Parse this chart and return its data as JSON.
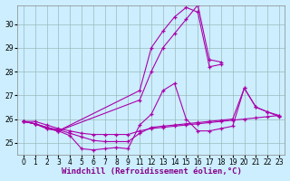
{
  "title": "",
  "xlabel": "Windchill (Refroidissement éolien,°C)",
  "bg_color": "#cceeff",
  "line_color": "#aa00aa",
  "grid_color": "#99bbbb",
  "series": [
    [
      25.9,
      25.9,
      25.75,
      25.6,
      25.5,
      25.4,
      25.35,
      25.35,
      25.35,
      25.35,
      25.5,
      25.6,
      25.65,
      25.7,
      25.75,
      25.8,
      25.85,
      25.9,
      25.95,
      26.0,
      26.05,
      26.1,
      26.15
    ],
    [
      25.9,
      25.8,
      25.65,
      25.55,
      25.4,
      25.25,
      25.1,
      25.05,
      25.05,
      25.05,
      25.4,
      25.65,
      25.7,
      25.75,
      25.8,
      25.85,
      25.9,
      25.95,
      26.0,
      27.3,
      26.5,
      26.3,
      26.1
    ],
    [
      25.9,
      25.8,
      25.65,
      25.5,
      25.3,
      24.75,
      24.7,
      24.75,
      24.8,
      24.75,
      25.75,
      26.2,
      27.2,
      27.5,
      26.0,
      25.5,
      25.5,
      25.6,
      25.7,
      27.3,
      26.5,
      26.3,
      26.15
    ],
    [
      25.9,
      25.8,
      25.6,
      25.5,
      null,
      null,
      null,
      null,
      null,
      null,
      26.8,
      28.0,
      29.0,
      29.6,
      30.2,
      30.8,
      28.5,
      28.4,
      null,
      null,
      null,
      null,
      null
    ]
  ],
  "series2": [
    [
      25.9,
      25.8,
      25.6,
      25.5,
      null,
      null,
      null,
      null,
      null,
      null,
      27.2,
      29.0,
      29.7,
      30.3,
      30.7,
      30.5,
      28.2,
      28.3,
      null,
      null,
      null,
      null,
      null
    ]
  ],
  "xlim": [
    -0.3,
    23.3
  ],
  "ylim": [
    24.5,
    30.8
  ],
  "yticks": [
    25,
    26,
    27,
    28,
    29,
    30
  ],
  "xticks": [
    0,
    1,
    2,
    3,
    4,
    5,
    6,
    7,
    8,
    9,
    11,
    12,
    13,
    14,
    15,
    16,
    17,
    18,
    19,
    20,
    21,
    22,
    23
  ],
  "label_fontsize": 6.5,
  "tick_fontsize": 5.5
}
